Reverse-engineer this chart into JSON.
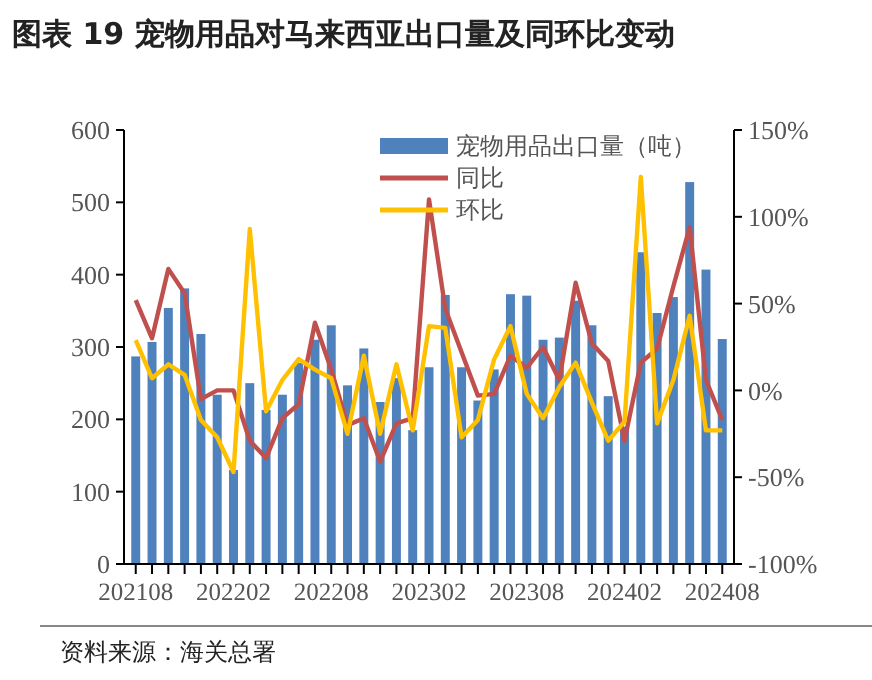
{
  "chart_data": {
    "type": "bar",
    "title": "图表 19 宠物用品对马来西亚出口量及同环比变动",
    "categories": [
      "202108",
      null,
      null,
      null,
      null,
      null,
      "202202",
      null,
      null,
      null,
      null,
      null,
      "202208",
      null,
      null,
      null,
      null,
      null,
      "202302",
      null,
      null,
      null,
      null,
      null,
      "202308",
      null,
      null,
      null,
      null,
      null,
      "202402",
      null,
      null,
      null,
      null,
      null,
      "202408"
    ],
    "series": [
      {
        "name": "宠物用品出口量（吨）",
        "color": "#4f81bd",
        "values": [
          287,
          307,
          354,
          381,
          318,
          234,
          130,
          250,
          213,
          234,
          278,
          310,
          330,
          247,
          298,
          224,
          257,
          185,
          272,
          372,
          272,
          226,
          269,
          373,
          371,
          310,
          313,
          364,
          330,
          232,
          190,
          431,
          347,
          369,
          528,
          407,
          311
        ]
      },
      {
        "name": "同比",
        "type": "line",
        "axis": "y2",
        "color": "#c0504d",
        "values": [
          52,
          30,
          70,
          56,
          -5,
          0,
          0,
          -29,
          -39,
          -16,
          -8,
          39,
          12,
          -20,
          -16,
          -41,
          -19,
          -16,
          110,
          47,
          22,
          -3,
          -2,
          20,
          13,
          25,
          6,
          62,
          27,
          17,
          -29,
          16,
          24,
          60,
          94,
          6,
          -17
        ]
      },
      {
        "name": "环比",
        "type": "line",
        "axis": "y2",
        "color": "#ffc000",
        "values": [
          29,
          7,
          15,
          9,
          -17,
          -27,
          -47,
          93,
          -12,
          6,
          18,
          12,
          7,
          -25,
          20,
          -25,
          15,
          -23,
          37,
          36,
          -27,
          -17,
          18,
          37,
          -2,
          -16,
          2,
          16,
          -7,
          -29,
          -18,
          123,
          -19,
          6,
          43,
          -23,
          -23
        ]
      }
    ],
    "ylim": [
      0,
      600
    ],
    "yticks": [
      0,
      100,
      200,
      300,
      400,
      500,
      600
    ],
    "y2lim": [
      -100,
      150
    ],
    "y2ticks": [
      {
        "value": -100,
        "label": "-100%"
      },
      {
        "value": -50,
        "label": "-50%"
      },
      {
        "value": 0,
        "label": "0%"
      },
      {
        "value": 50,
        "label": "50%"
      },
      {
        "value": 100,
        "label": "100%"
      },
      {
        "value": 150,
        "label": "150%"
      }
    ],
    "legend": "top",
    "grid": false,
    "line_style": "solid",
    "marker": "none",
    "annotations": [
      "资料来源：海关总署"
    ]
  }
}
